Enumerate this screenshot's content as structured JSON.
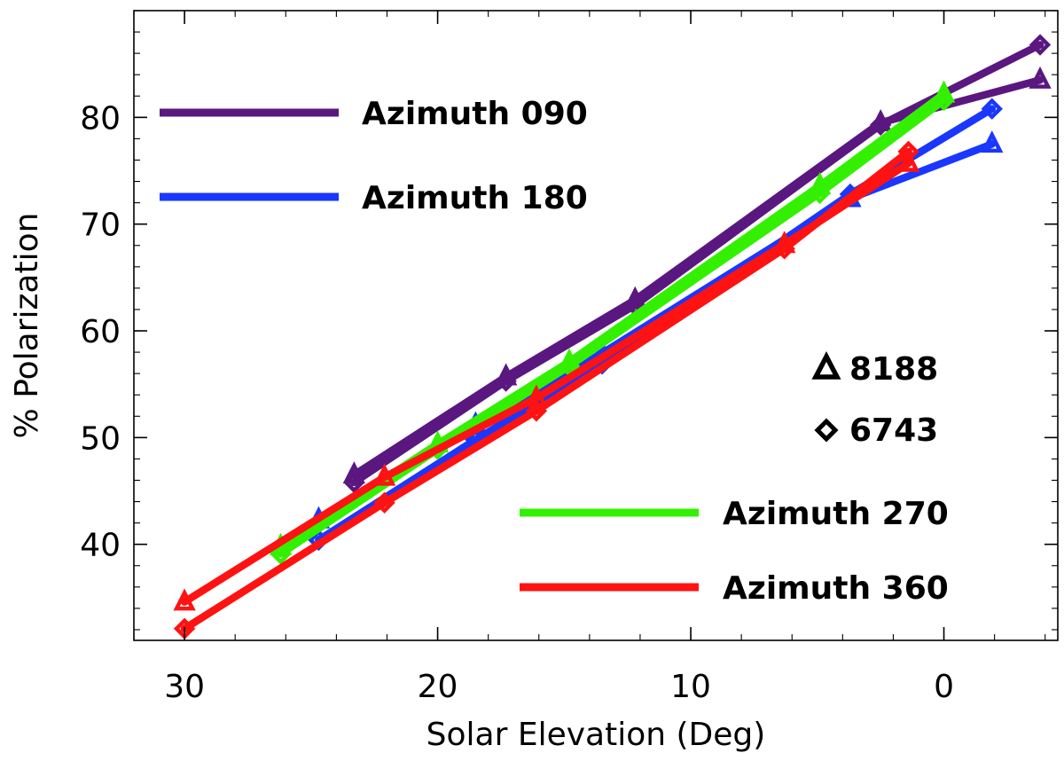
{
  "chart_data": {
    "type": "line",
    "xlabel": "Solar Elevation (Deg)",
    "ylabel": "% Polarization",
    "xlim": [
      32,
      -4.5
    ],
    "ylim": [
      31,
      90
    ],
    "x_ticks": [
      30,
      20,
      10,
      0
    ],
    "y_ticks": [
      40,
      50,
      60,
      70,
      80
    ],
    "colors": {
      "az090": "#5a1780",
      "az180": "#1a37ff",
      "az270": "#33f000",
      "az360": "#ff1212",
      "text": "#000000"
    },
    "marker_legend": [
      {
        "marker": "triangle",
        "label": "8188"
      },
      {
        "marker": "diamond",
        "label": "6743"
      }
    ],
    "series_legend": [
      {
        "key": "az090",
        "label": "Azimuth 090"
      },
      {
        "key": "az180",
        "label": "Azimuth 180"
      },
      {
        "key": "az270",
        "label": "Azimuth 270"
      },
      {
        "key": "az360",
        "label": "Azimuth 360"
      }
    ],
    "series": [
      {
        "key": "az090",
        "marker": "triangle",
        "x": [
          23.3,
          17.3,
          12.2,
          2.5,
          -3.8
        ],
        "y": [
          46.5,
          55.7,
          62.9,
          79.5,
          83.5
        ]
      },
      {
        "key": "az090",
        "marker": "diamond",
        "x": [
          23.3,
          17.3,
          12.2,
          2.5,
          -3.8
        ],
        "y": [
          45.8,
          55.3,
          62.4,
          79.3,
          86.8
        ]
      },
      {
        "key": "az180",
        "marker": "triangle",
        "x": [
          24.7,
          18.5,
          13.5,
          3.7,
          -1.9
        ],
        "y": [
          42.3,
          51.2,
          57.9,
          72.4,
          77.5
        ]
      },
      {
        "key": "az180",
        "marker": "diamond",
        "x": [
          24.7,
          18.5,
          13.5,
          3.7,
          -1.9
        ],
        "y": [
          40.4,
          49.8,
          56.9,
          72.8,
          80.8
        ]
      },
      {
        "key": "az270",
        "marker": "triangle",
        "x": [
          26.2,
          20.0,
          14.8,
          4.9,
          0.0
        ],
        "y": [
          39.8,
          49.4,
          57.1,
          73.6,
          82.2
        ]
      },
      {
        "key": "az270",
        "marker": "diamond",
        "x": [
          26.2,
          20.0,
          14.8,
          4.9,
          0.0
        ],
        "y": [
          39.1,
          48.9,
          56.7,
          72.9,
          81.6
        ]
      },
      {
        "key": "az360",
        "marker": "triangle",
        "x": [
          30.0,
          22.1,
          16.1,
          6.3,
          1.4
        ],
        "y": [
          34.6,
          46.3,
          53.7,
          68.1,
          75.7
        ]
      },
      {
        "key": "az360",
        "marker": "diamond",
        "x": [
          30.0,
          22.1,
          16.1,
          6.3,
          1.4
        ],
        "y": [
          32.1,
          43.9,
          52.5,
          67.7,
          76.8
        ]
      }
    ]
  }
}
